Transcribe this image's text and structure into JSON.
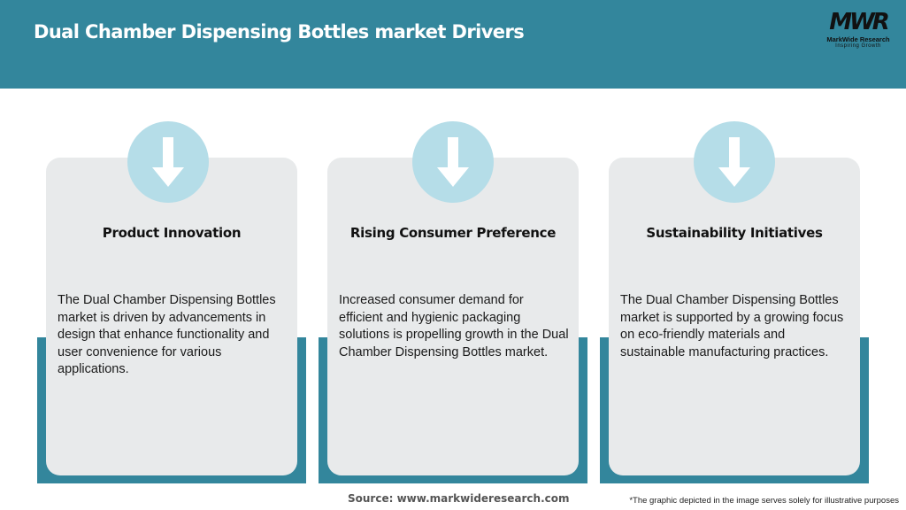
{
  "header": {
    "title": "Dual Chamber Dispensing Bottles market Drivers"
  },
  "logo": {
    "mark": "MWR",
    "name": "MarkWide Research",
    "tagline": "Inspiring Growth"
  },
  "colors": {
    "accent": "#33869c",
    "circle": "#b5dde8",
    "card": "#e8eaeb"
  },
  "cards": [
    {
      "icon": "arrow-down-icon",
      "title": "Product Innovation",
      "body": "The Dual Chamber Dispensing Bottles market is driven by advancements in design that enhance functionality and user convenience for various applications."
    },
    {
      "icon": "arrow-down-icon",
      "title": "Rising Consumer Preference",
      "body": "Increased consumer demand for efficient and hygienic packaging solutions is propelling growth in the Dual Chamber Dispensing Bottles market."
    },
    {
      "icon": "arrow-down-icon",
      "title": "Sustainability Initiatives",
      "body": "The Dual Chamber Dispensing Bottles market is supported by a growing focus on eco-friendly materials and sustainable manufacturing practices."
    }
  ],
  "footer": {
    "source": "Source: www.markwideresearch.com",
    "note": "*The graphic depicted in the image serves solely for illustrative purposes"
  }
}
